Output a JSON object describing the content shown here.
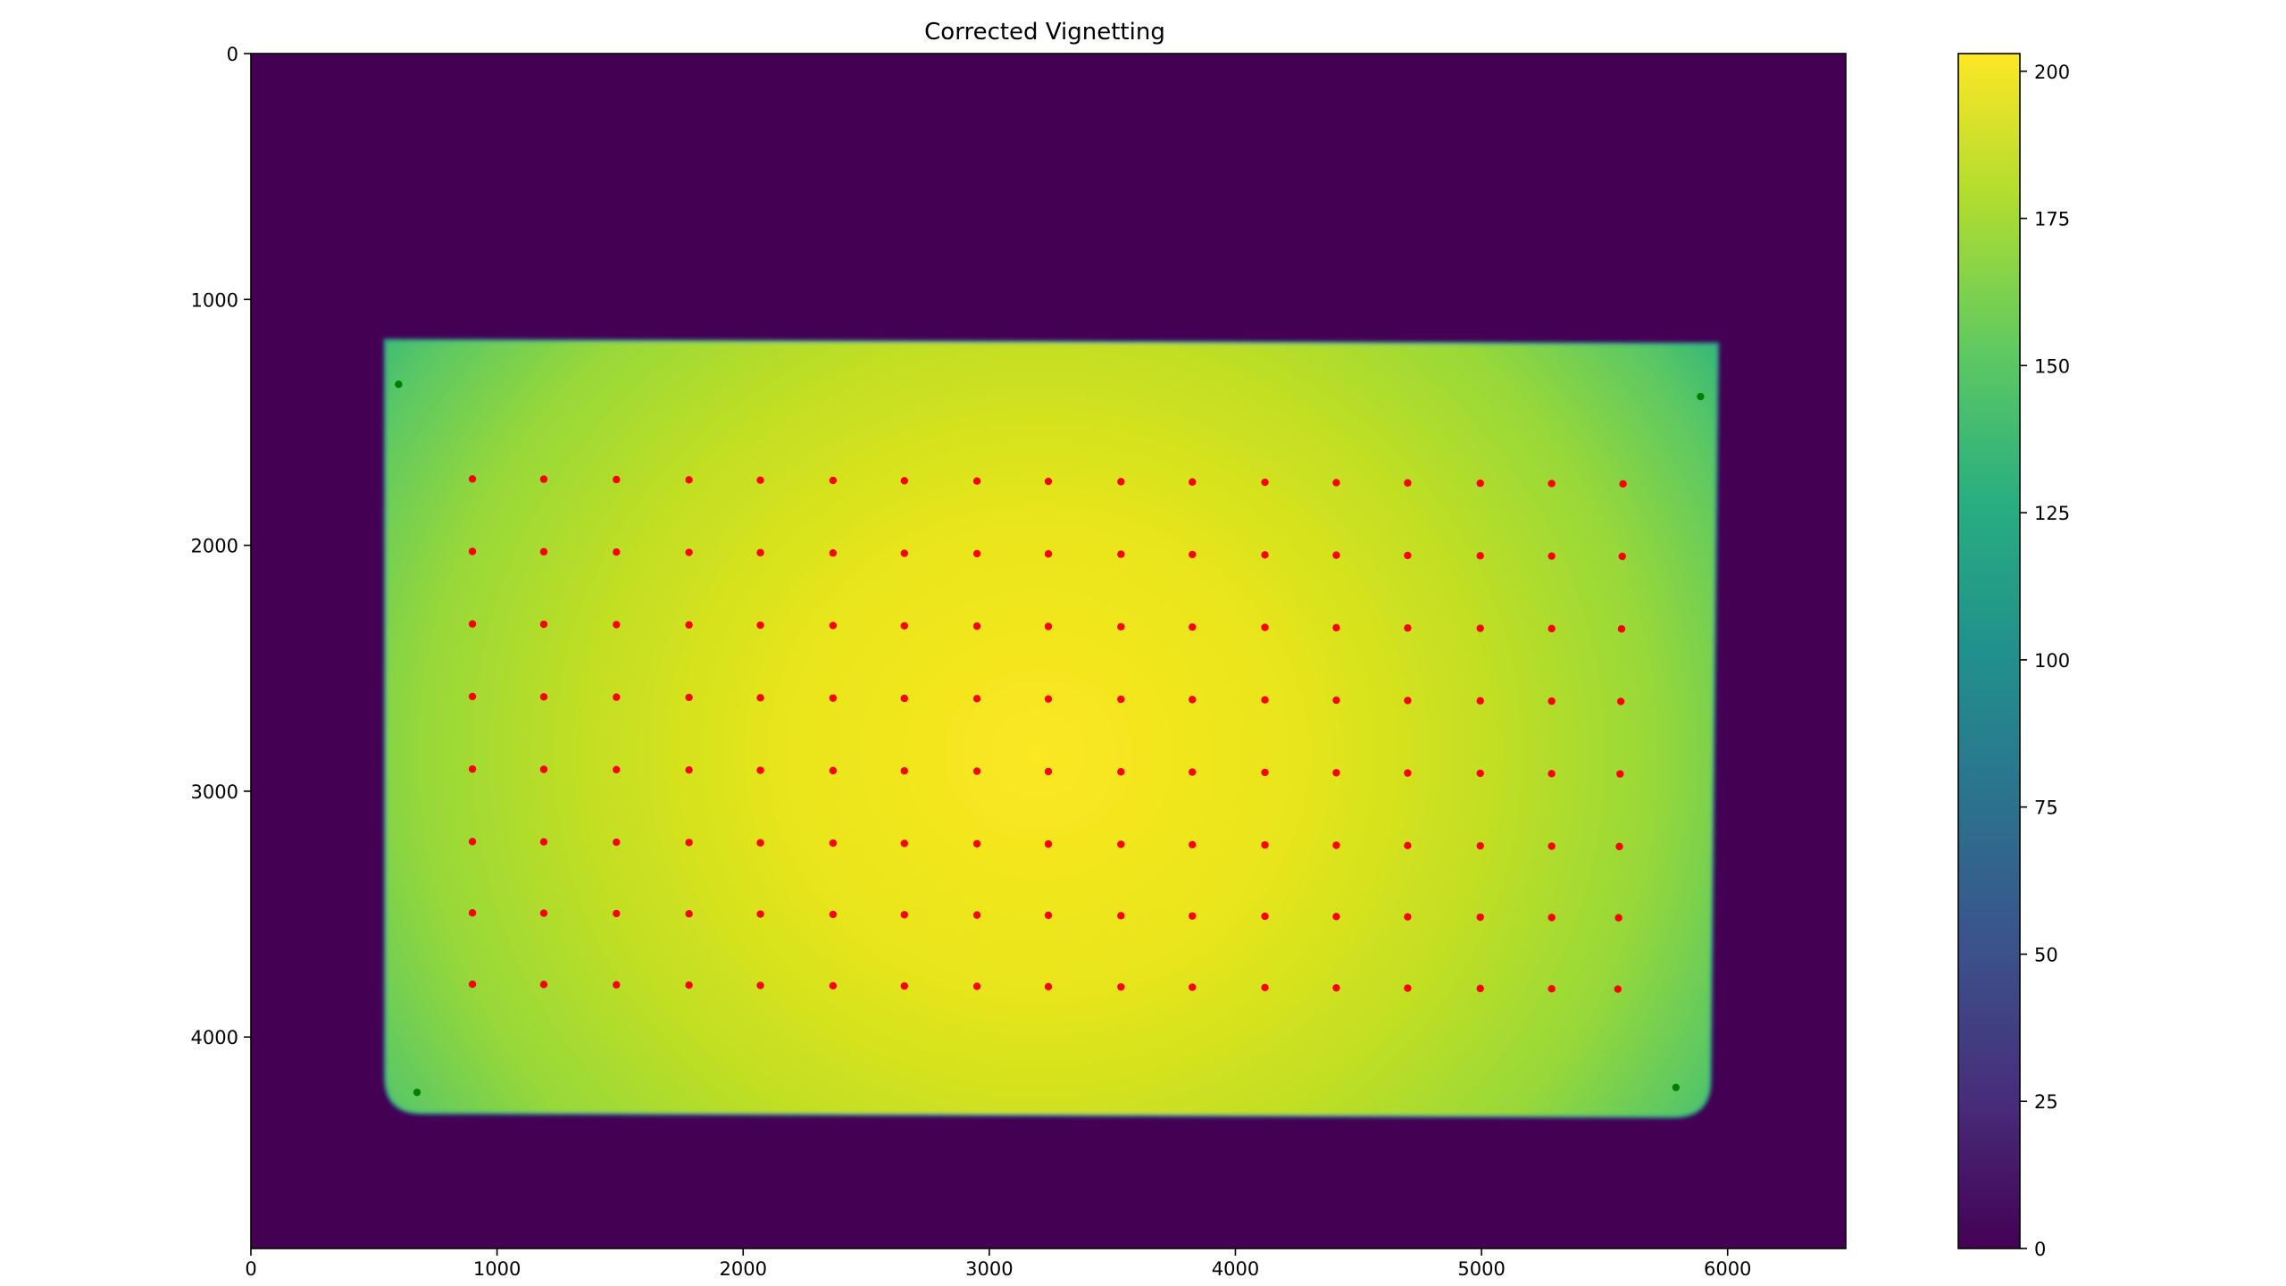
{
  "chart_data": {
    "type": "heatmap",
    "title": "Corrected Vignetting",
    "xlim": [
      0,
      6480
    ],
    "ylim": [
      4860,
      0
    ],
    "xticks": [
      0,
      1000,
      2000,
      3000,
      4000,
      5000,
      6000
    ],
    "yticks": [
      0,
      1000,
      2000,
      3000,
      4000
    ],
    "colorbar": {
      "colormap": "viridis",
      "range": [
        0,
        203
      ],
      "ticks": [
        0,
        25,
        50,
        75,
        100,
        125,
        150,
        175,
        200
      ]
    },
    "background_value": 2,
    "target_region": {
      "corners": [
        [
          545,
          1165
        ],
        [
          5960,
          1180
        ],
        [
          5930,
          4325
        ],
        [
          545,
          4310
        ]
      ],
      "corner_radius": 150,
      "peak_value": 203,
      "peak_location": [
        3200,
        2850
      ],
      "edge_value": 130
    },
    "series": [
      {
        "color": "#ff0000",
        "grid_x": [
          900,
          1190,
          1485,
          1780,
          2070,
          2365,
          2655,
          2950,
          3240,
          3535,
          3825,
          4120,
          4410,
          4700,
          4995,
          5285,
          5575
        ],
        "grid_y": [
          1730,
          2025,
          2320,
          2615,
          2910,
          3205,
          3495,
          3785
        ],
        "x_drift_per_row": 3,
        "y_drift_across": 20
      },
      {
        "color": "#008000",
        "points": [
          [
            600,
            1345
          ],
          [
            5890,
            1395
          ],
          [
            675,
            4225
          ],
          [
            5790,
            4205
          ]
        ]
      }
    ]
  }
}
